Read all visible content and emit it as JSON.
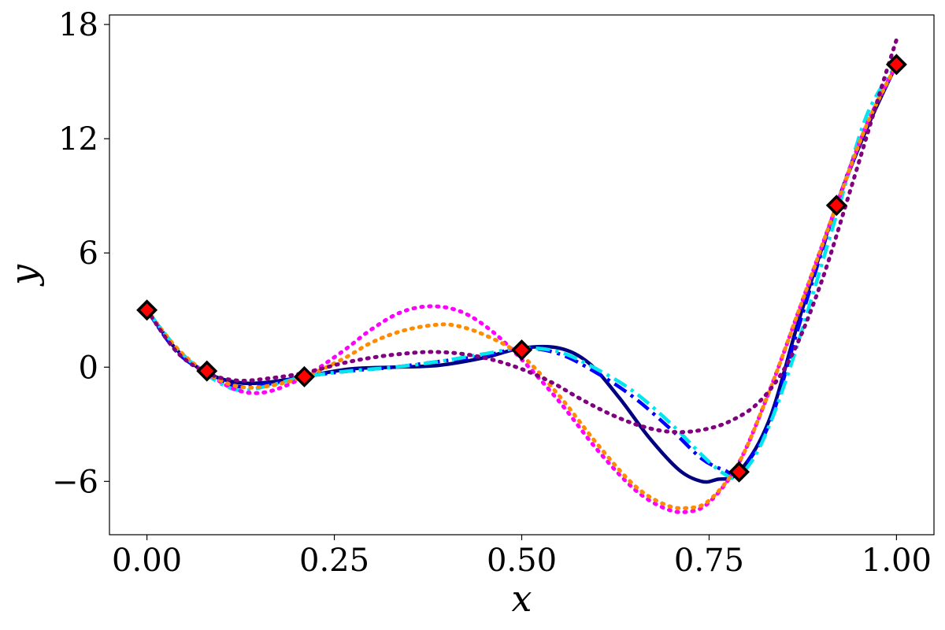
{
  "chart_data": {
    "type": "line",
    "xlabel": "x",
    "ylabel": "y",
    "xlim": [
      -0.05,
      1.05
    ],
    "ylim": [
      -8.8,
      18.5
    ],
    "xticks": [
      0.0,
      0.25,
      0.5,
      0.75,
      1.0
    ],
    "xtick_labels": [
      "0.00",
      "0.25",
      "0.50",
      "0.75",
      "1.00"
    ],
    "yticks": [
      -6,
      0,
      6,
      12,
      18
    ],
    "ytick_labels": [
      "−6",
      "0",
      "6",
      "12",
      "18"
    ],
    "grid": false,
    "legend": "none",
    "series": [
      {
        "color": "#000080",
        "style": "solid",
        "x": [
          0.0,
          0.04,
          0.08,
          0.12,
          0.16,
          0.21,
          0.27,
          0.33,
          0.39,
          0.45,
          0.5,
          0.55,
          0.59,
          0.63,
          0.67,
          0.71,
          0.74,
          0.76,
          0.79,
          0.83,
          0.87,
          0.92,
          0.96,
          1.0
        ],
        "y": [
          3.0,
          0.9,
          -0.3,
          -0.8,
          -0.8,
          -0.5,
          -0.1,
          0.0,
          0.1,
          0.5,
          1.0,
          1.0,
          0.2,
          -1.6,
          -3.7,
          -5.4,
          -6.0,
          -5.9,
          -5.5,
          -2.8,
          2.5,
          8.5,
          12.5,
          15.9
        ]
      },
      {
        "color": "#0000ff",
        "style": "dashdot",
        "x": [
          0.0,
          0.04,
          0.08,
          0.12,
          0.16,
          0.21,
          0.27,
          0.33,
          0.39,
          0.45,
          0.5,
          0.55,
          0.6,
          0.65,
          0.7,
          0.74,
          0.77,
          0.79,
          0.83,
          0.87,
          0.92,
          0.96,
          1.0
        ],
        "y": [
          3.0,
          0.8,
          -0.3,
          -1.0,
          -0.9,
          -0.5,
          -0.2,
          0.0,
          0.3,
          0.6,
          1.0,
          0.7,
          -0.3,
          -1.6,
          -3.3,
          -4.8,
          -5.4,
          -5.5,
          -3.0,
          2.2,
          8.5,
          12.7,
          15.9
        ]
      },
      {
        "color": "#00e5ee",
        "style": "dashdot",
        "x": [
          0.0,
          0.04,
          0.08,
          0.12,
          0.16,
          0.21,
          0.27,
          0.33,
          0.39,
          0.45,
          0.5,
          0.55,
          0.6,
          0.65,
          0.7,
          0.74,
          0.77,
          0.79,
          0.82,
          0.86,
          0.92,
          0.96,
          1.0
        ],
        "y": [
          3.0,
          1.0,
          -0.4,
          -1.2,
          -1.0,
          -0.5,
          -0.2,
          0.0,
          0.3,
          0.7,
          1.0,
          0.8,
          -0.1,
          -1.3,
          -3.0,
          -4.6,
          -5.6,
          -5.7,
          -4.0,
          0.2,
          8.0,
          13.2,
          15.9
        ]
      },
      {
        "color": "#ff00ff",
        "style": "dotted",
        "x": [
          0.0,
          0.04,
          0.08,
          0.12,
          0.16,
          0.21,
          0.26,
          0.3,
          0.34,
          0.38,
          0.42,
          0.46,
          0.5,
          0.55,
          0.6,
          0.65,
          0.69,
          0.72,
          0.75,
          0.79,
          0.83,
          0.87,
          0.92,
          0.96,
          1.0
        ],
        "y": [
          3.0,
          0.9,
          -0.3,
          -1.2,
          -1.3,
          -0.5,
          0.8,
          2.0,
          2.9,
          3.2,
          2.9,
          1.9,
          0.4,
          -1.8,
          -4.3,
          -6.4,
          -7.4,
          -7.6,
          -7.1,
          -5.0,
          -1.3,
          3.0,
          8.5,
          12.7,
          15.9
        ]
      },
      {
        "color": "#ff8c00",
        "style": "dotted",
        "x": [
          0.0,
          0.04,
          0.08,
          0.12,
          0.16,
          0.21,
          0.26,
          0.3,
          0.34,
          0.38,
          0.41,
          0.45,
          0.5,
          0.55,
          0.6,
          0.65,
          0.69,
          0.72,
          0.75,
          0.79,
          0.83,
          0.87,
          0.92,
          0.96,
          1.0
        ],
        "y": [
          3.0,
          1.0,
          -0.3,
          -1.0,
          -1.0,
          -0.5,
          0.4,
          1.3,
          1.9,
          2.2,
          2.2,
          1.7,
          0.6,
          -1.5,
          -4.0,
          -6.2,
          -7.2,
          -7.4,
          -7.0,
          -5.0,
          -1.3,
          3.0,
          8.5,
          12.7,
          15.9
        ]
      },
      {
        "color": "#800080",
        "style": "dotted",
        "x": [
          0.0,
          0.04,
          0.08,
          0.12,
          0.16,
          0.21,
          0.26,
          0.3,
          0.34,
          0.38,
          0.42,
          0.46,
          0.5,
          0.54,
          0.58,
          0.62,
          0.66,
          0.7,
          0.74,
          0.78,
          0.82,
          0.86,
          0.9,
          0.94,
          0.98,
          1.0
        ],
        "y": [
          3.0,
          0.8,
          -0.3,
          -0.7,
          -0.6,
          -0.3,
          0.2,
          0.5,
          0.7,
          0.8,
          0.7,
          0.4,
          -0.1,
          -0.8,
          -1.7,
          -2.5,
          -3.1,
          -3.4,
          -3.3,
          -2.8,
          -1.7,
          0.6,
          4.5,
          9.5,
          14.7,
          17.2
        ]
      }
    ],
    "markers": {
      "color": "#ff0000",
      "edge_color": "#000000",
      "shape": "diamond",
      "x": [
        0.0,
        0.08,
        0.21,
        0.5,
        0.79,
        0.92,
        1.0
      ],
      "y": [
        3.0,
        -0.2,
        -0.5,
        0.9,
        -5.5,
        8.5,
        15.9
      ]
    }
  }
}
